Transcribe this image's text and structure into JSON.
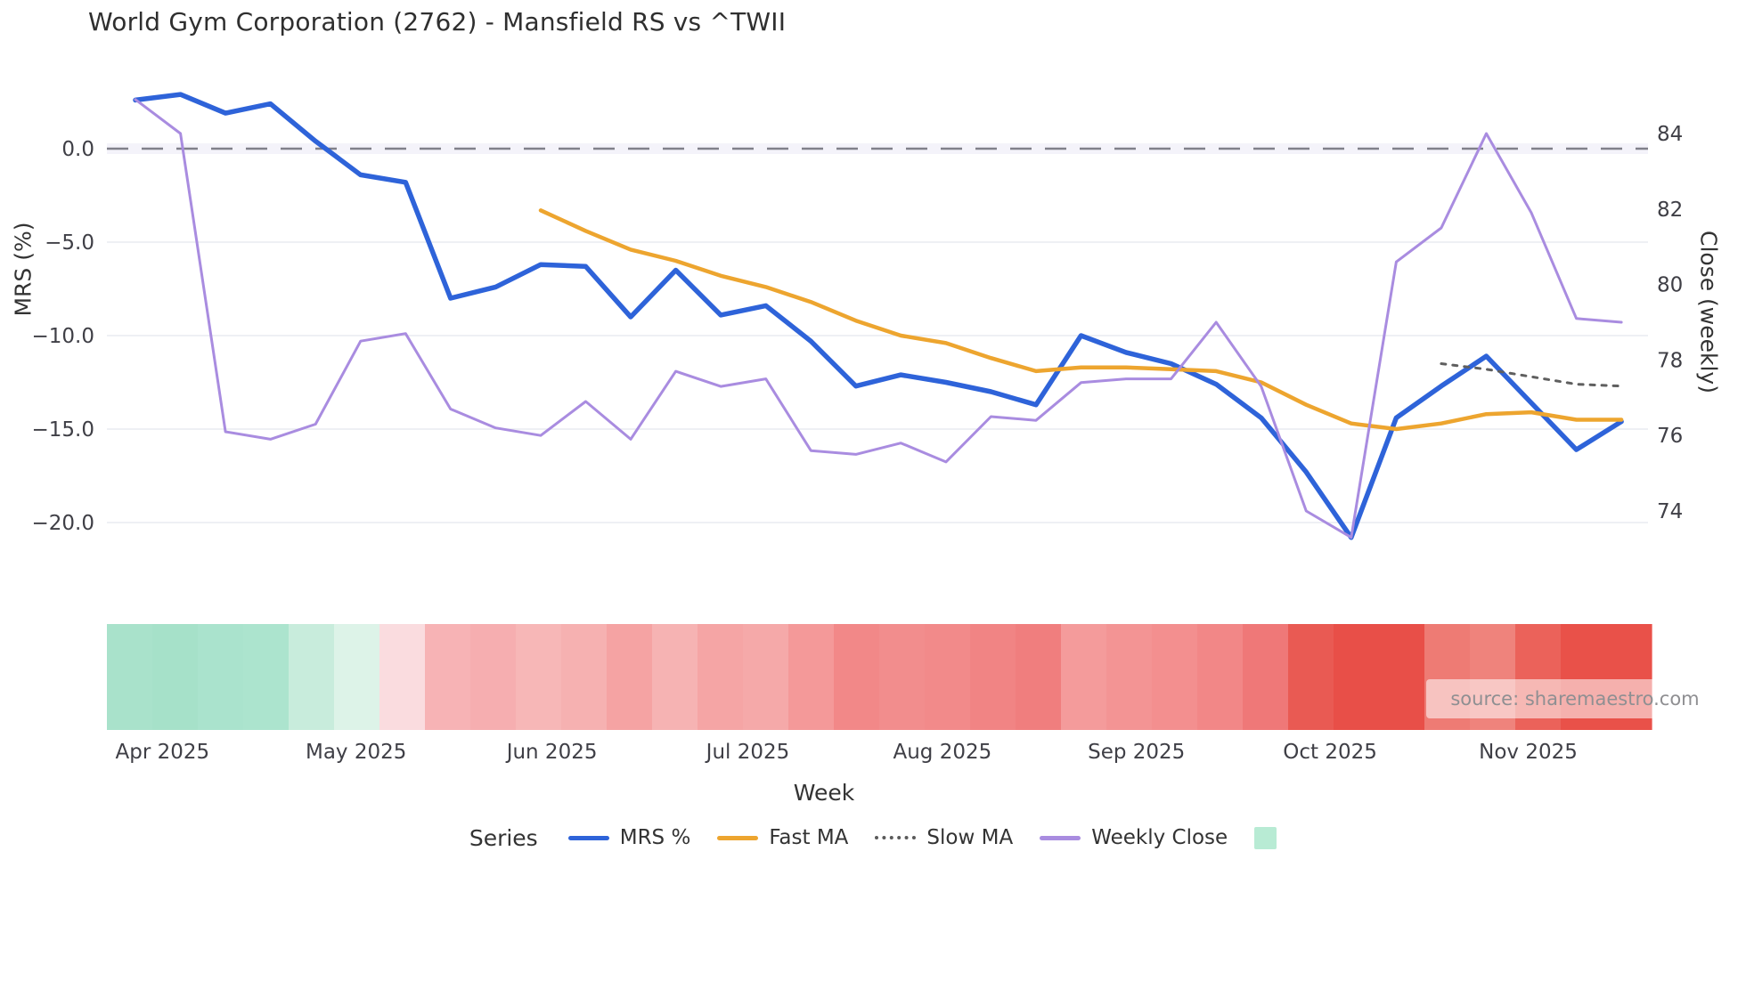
{
  "header": {
    "title": "World Gym Corporation (2762) - Mansfield RS vs ^TWII"
  },
  "source_note": "source: sharemaestro.com",
  "legend": {
    "title": "Series",
    "items": [
      {
        "label": "MRS %",
        "swatch": "line",
        "color": "#2e63d9"
      },
      {
        "label": "Fast MA",
        "swatch": "line",
        "color": "#eda52f"
      },
      {
        "label": "Slow MA",
        "swatch": "dots",
        "color": "#5a5a5a"
      },
      {
        "label": "Weekly Close",
        "swatch": "line",
        "color": "#a98ce0"
      },
      {
        "label": "",
        "swatch": "square",
        "color": "#b8ebd4"
      }
    ]
  },
  "chart_data": {
    "type": "line",
    "title": "World Gym Corporation (2762) - Mansfield RS vs ^TWII",
    "xlabel": "Week",
    "ylabel_left": "MRS (%)",
    "ylabel_right": "Close (weekly)",
    "grid": "horizontal-only",
    "n_weeks": 34,
    "zero_line": {
      "value": 0.0,
      "axis": "left",
      "style": "dashed",
      "color": "#80808a"
    },
    "left_axis": {
      "range_approx": [
        -22.5,
        4.4
      ],
      "ticks": [
        {
          "label": "0.0",
          "value": 0
        },
        {
          "label": "−5.0",
          "value": -5
        },
        {
          "label": "−10.0",
          "value": -10
        },
        {
          "label": "−15.0",
          "value": -15
        },
        {
          "label": "−20.0",
          "value": -20
        }
      ]
    },
    "right_axis": {
      "range_approx": [
        72.4,
        85.8
      ],
      "ticks": [
        {
          "label": "84",
          "value": 84
        },
        {
          "label": "82",
          "value": 82
        },
        {
          "label": "80",
          "value": 80
        },
        {
          "label": "78",
          "value": 78
        },
        {
          "label": "76",
          "value": 76
        },
        {
          "label": "74",
          "value": 74
        }
      ]
    },
    "month_ticks": [
      {
        "label": "Apr 2025",
        "week": 1.6
      },
      {
        "label": "May 2025",
        "week": 5.9
      },
      {
        "label": "Jun 2025",
        "week": 10.25
      },
      {
        "label": "Jul 2025",
        "week": 14.6
      },
      {
        "label": "Aug 2025",
        "week": 18.92
      },
      {
        "label": "Sep 2025",
        "week": 23.23
      },
      {
        "label": "Oct 2025",
        "week": 27.53
      },
      {
        "label": "Nov 2025",
        "week": 31.93
      }
    ],
    "series": [
      {
        "name": "MRS %",
        "axis": "left",
        "color": "#2e63d9",
        "width": 5.5,
        "dash": null,
        "start_week": 1,
        "values": [
          2.6,
          2.9,
          1.9,
          2.4,
          0.4,
          -1.4,
          -1.8,
          -8.0,
          -7.4,
          -6.2,
          -6.3,
          -9.0,
          -6.5,
          -8.9,
          -8.4,
          -10.3,
          -12.7,
          -12.1,
          -12.5,
          -13.0,
          -13.7,
          -10.0,
          -10.9,
          -11.5,
          -12.6,
          -14.4,
          -17.3,
          -20.8,
          -14.4,
          -12.7,
          -11.1,
          -13.6,
          -16.1,
          -14.6
        ]
      },
      {
        "name": "Fast MA",
        "axis": "left",
        "color": "#eda52f",
        "width": 4.5,
        "dash": null,
        "start_week": 10,
        "values": [
          -3.3,
          -4.4,
          -5.4,
          -6.0,
          -6.8,
          -7.4,
          -8.2,
          -9.2,
          -10.0,
          -10.4,
          -11.2,
          -11.9,
          -11.7,
          -11.7,
          -11.8,
          -11.9,
          -12.5,
          -13.7,
          -14.7,
          -15.0,
          -14.7,
          -14.2,
          -14.1,
          -14.5,
          -14.5
        ]
      },
      {
        "name": "Slow MA",
        "axis": "left",
        "color": "#5f5f5f",
        "width": 3,
        "dash": "5 8",
        "start_week": 30,
        "values": [
          -11.5,
          -11.8,
          -12.2,
          -12.6,
          -12.7
        ]
      },
      {
        "name": "Weekly Close",
        "axis": "right",
        "color": "#a98ce0",
        "width": 3,
        "dash": null,
        "start_week": 1,
        "values": [
          84.9,
          84.0,
          76.1,
          75.9,
          76.3,
          78.5,
          78.7,
          76.7,
          76.2,
          76.0,
          76.9,
          75.9,
          77.7,
          77.3,
          77.5,
          75.6,
          75.5,
          75.8,
          75.3,
          76.5,
          76.4,
          77.4,
          77.5,
          77.5,
          79.0,
          77.3,
          74.0,
          73.3,
          80.6,
          81.5,
          84.0,
          81.9,
          79.1,
          79.0
        ]
      }
    ],
    "heat_strip": {
      "description": "weekly sentiment cells below plot, green=positive, red=negative",
      "colors": [
        "#a9e2cb",
        "#a6e1c9",
        "#aae3cd",
        "#ace4ce",
        "#c8ecdc",
        "#ddf3e8",
        "#fadcdf",
        "#f7b3b5",
        "#f6aeb0",
        "#f7b7b7",
        "#f6b1b1",
        "#f5a3a3",
        "#f6b3b3",
        "#f5a5a5",
        "#f5a9a9",
        "#f49999",
        "#f28888",
        "#f28d8d",
        "#f28a8a",
        "#f18484",
        "#f07e7e",
        "#f49b9b",
        "#f39494",
        "#f38f8f",
        "#f28787",
        "#ef7878",
        "#e95a53",
        "#e84f48",
        "#e84f48",
        "#ee7b74",
        "#ef837c",
        "#eb625a",
        "#e95149",
        "#e95149"
      ]
    }
  }
}
